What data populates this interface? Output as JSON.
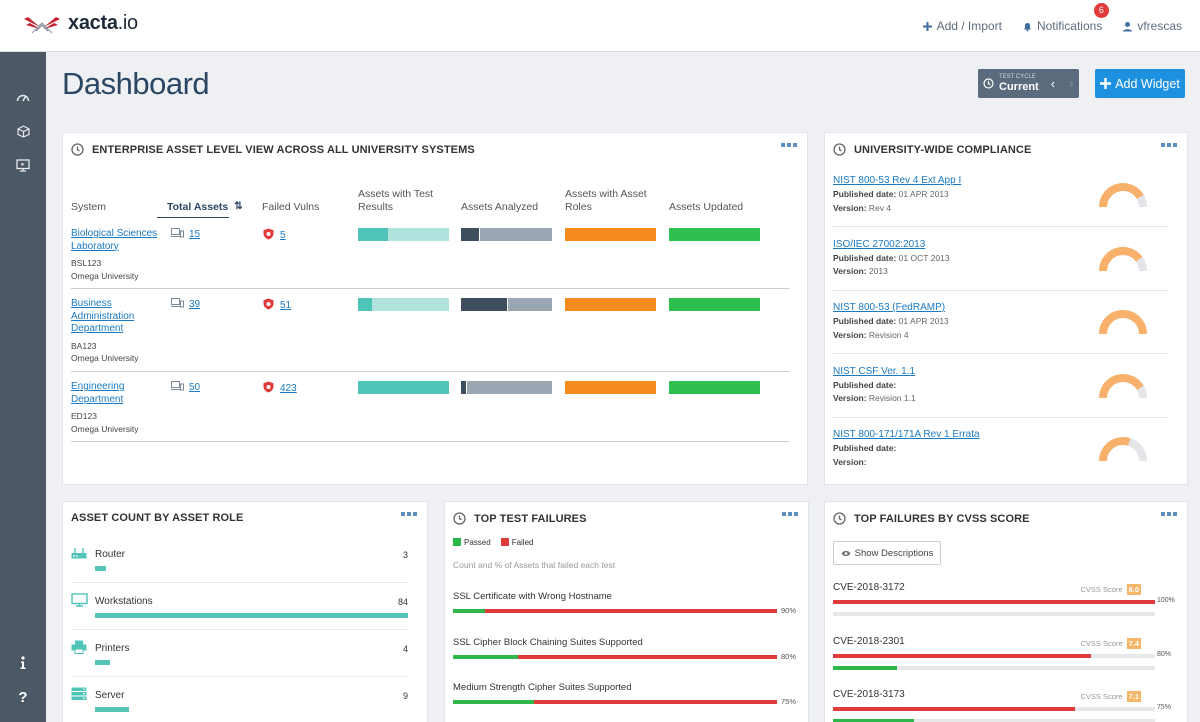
{
  "header": {
    "logo_text_bold": "xacta",
    "logo_text_rest": ".io",
    "add_import": "Add / Import",
    "notifications": "Notifications",
    "notifications_count": "6",
    "user": "vfrescas"
  },
  "page": {
    "title": "Dashboard",
    "test_cycle_label": "TEST CYCLE",
    "test_cycle_value": "Current",
    "add_widget": "Add Widget"
  },
  "enterprise": {
    "title": "ENTERPRISE ASSET LEVEL VIEW ACROSS ALL UNIVERSITY SYSTEMS",
    "headers": {
      "system": "System",
      "total_assets": "Total Assets",
      "failed_vulns": "Failed Vulns",
      "test_results": "Assets with Test Results",
      "analyzed": "Assets Analyzed",
      "roles": "Assets with Asset Roles",
      "updated": "Assets Updated"
    },
    "rows": [
      {
        "name": "Biological Sciences Laboratory",
        "code": "BSL123",
        "org": "Omega University",
        "assets": "15",
        "vulns": "5",
        "test": 0.33,
        "analyzed": 0.2,
        "roles": 1,
        "updated": 1
      },
      {
        "name": "Business Administration Department",
        "code": "BA123",
        "org": "Omega University",
        "assets": "39",
        "vulns": "51",
        "test": 0.15,
        "analyzed": 0.5,
        "roles": 1,
        "updated": 1
      },
      {
        "name": "Engineering Department",
        "code": "ED123",
        "org": "Omega University",
        "assets": "50",
        "vulns": "423",
        "test": 1,
        "analyzed": 0.05,
        "roles": 1,
        "updated": 1
      }
    ]
  },
  "compliance": {
    "title": "UNIVERSITY-WIDE COMPLIANCE",
    "published_label": "Published date:",
    "version_label": "Version:",
    "items": [
      {
        "name": "NIST 800-53 Rev 4 Ext App I",
        "date": "01 APR 2013",
        "version": "Rev 4",
        "pct": "83%",
        "value": 0.83
      },
      {
        "name": "ISO/IEC 27002:2013",
        "date": "01 OCT 2013",
        "version": "2013",
        "pct": "80%",
        "value": 0.8
      },
      {
        "name": "NIST 800-53 (FedRAMP)",
        "date": "01 APR 2013",
        "version": "Revision 4",
        "pct": "100%",
        "value": 1.0
      },
      {
        "name": "NIST CSF Ver. 1.1",
        "date": "",
        "version": "Revision 1.1",
        "pct": "83%",
        "value": 0.83
      },
      {
        "name": "NIST 800-171/171A Rev 1 Errata",
        "date": "",
        "version": "",
        "pct": "60%",
        "value": 0.6
      }
    ]
  },
  "asset_roles": {
    "title": "ASSET COUNT BY ASSET ROLE",
    "max": 84,
    "items": [
      {
        "name": "Router",
        "count": "3",
        "value": 3,
        "icon": "router-icon"
      },
      {
        "name": "Workstations",
        "count": "84",
        "value": 84,
        "icon": "monitor-icon"
      },
      {
        "name": "Printers",
        "count": "4",
        "value": 4,
        "icon": "printer-icon"
      },
      {
        "name": "Server",
        "count": "9",
        "value": 9,
        "icon": "server-icon"
      }
    ]
  },
  "test_failures": {
    "title": "TOP TEST FAILURES",
    "legend_passed": "Passed",
    "legend_failed": "Failed",
    "subtitle": "Count and % of Assets that failed each test",
    "passed_color": "#2fb84a",
    "failed_color": "#e03a3a",
    "items": [
      {
        "name": "SSL Certificate with Wrong Hostname",
        "pct": "90%",
        "failed": 0.9
      },
      {
        "name": "SSL Cipher Block Chaining Suites Supported",
        "pct": "80%",
        "failed": 0.8
      },
      {
        "name": "Medium Strength Cipher Suites Supported",
        "pct": "75%",
        "failed": 0.75
      }
    ]
  },
  "cvss": {
    "title": "TOP FAILURES BY CVSS SCORE",
    "show_descriptions": "Show Descriptions",
    "score_label": "CVSS Score",
    "items": [
      {
        "name": "CVE-2018-3172",
        "score": "8.0",
        "pct": "100%",
        "failed": 1.0,
        "passed": 0
      },
      {
        "name": "CVE-2018-2301",
        "score": "7.4",
        "pct": "80%",
        "failed": 0.8,
        "passed": 0.2
      },
      {
        "name": "CVE-2018-3173",
        "score": "7.1",
        "pct": "75%",
        "failed": 0.75,
        "passed": 0.25
      }
    ]
  }
}
